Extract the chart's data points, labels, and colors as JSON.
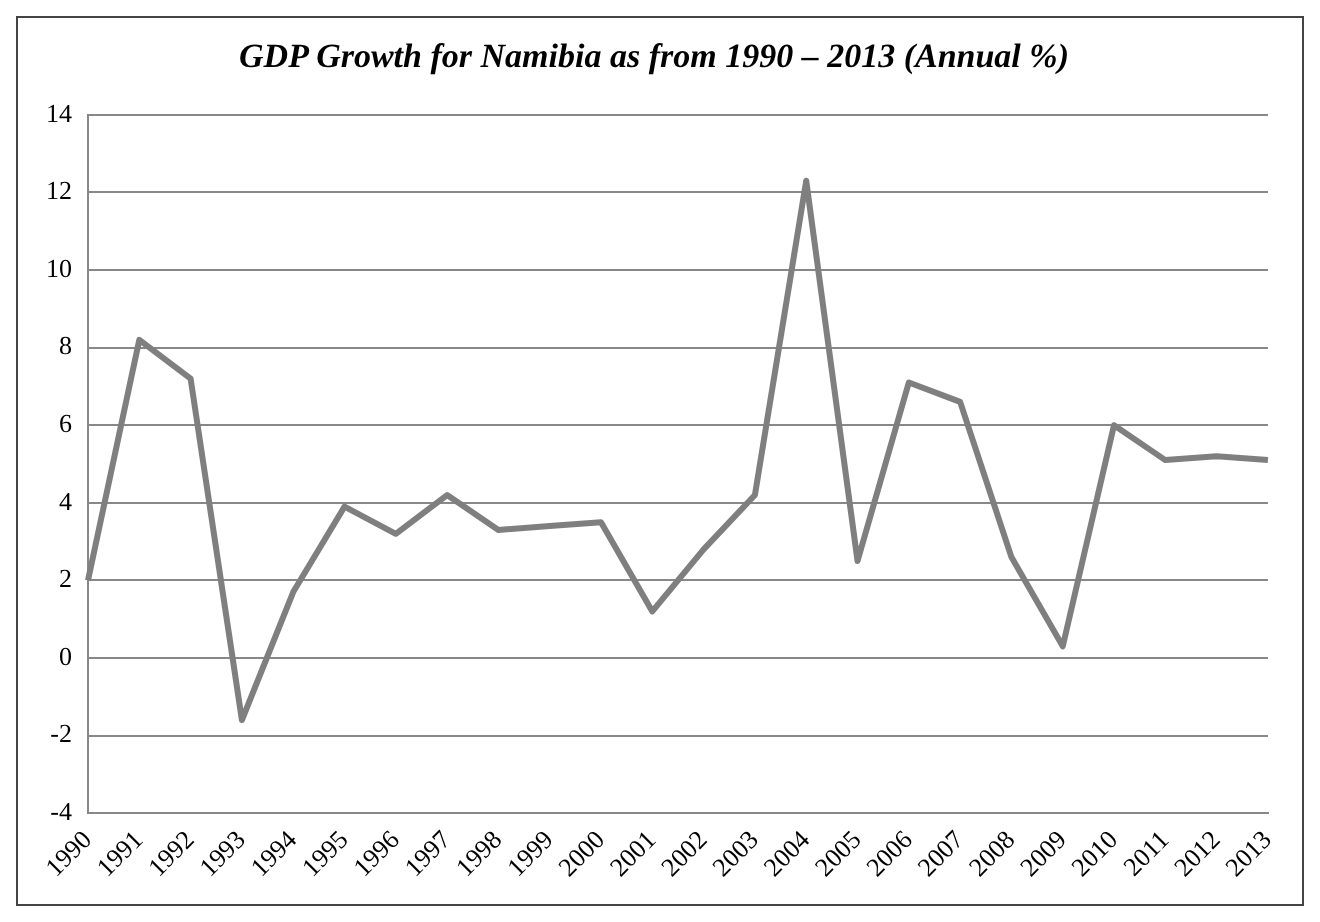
{
  "chart_data": {
    "type": "line",
    "title": "GDP Growth for Namibia as from 1990 – 2013 (Annual %)",
    "categories": [
      "1990",
      "1991",
      "1992",
      "1993",
      "1994",
      "1995",
      "1996",
      "1997",
      "1998",
      "1999",
      "2000",
      "2001",
      "2002",
      "2003",
      "2004",
      "2005",
      "2006",
      "2007",
      "2008",
      "2009",
      "2010",
      "2011",
      "2012",
      "2013"
    ],
    "series": [
      {
        "color": "#7f7f7f",
        "values": [
          2.0,
          8.2,
          7.2,
          -1.6,
          1.7,
          3.9,
          3.2,
          4.2,
          3.3,
          3.4,
          3.5,
          1.2,
          2.8,
          4.2,
          12.3,
          2.5,
          7.1,
          6.6,
          2.6,
          0.3,
          6.0,
          5.1,
          5.2,
          5.1
        ]
      }
    ],
    "ylim": [
      -4,
      14
    ],
    "yticks": [
      -4,
      -2,
      0,
      2,
      4,
      6,
      8,
      10,
      12,
      14
    ],
    "grid": "y",
    "legend": false,
    "marker": "none",
    "line_style": "solid"
  }
}
